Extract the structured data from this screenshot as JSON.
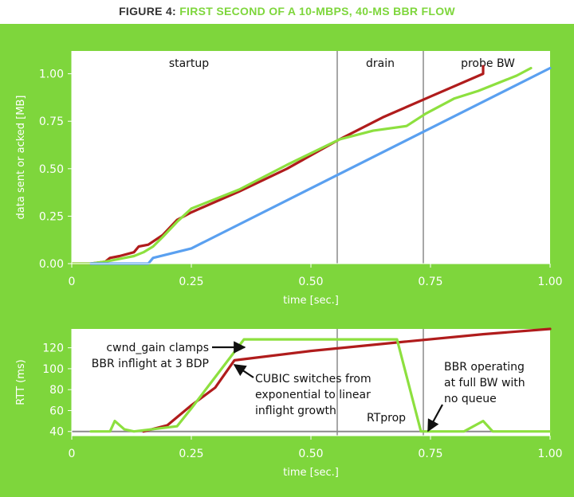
{
  "figure": {
    "number_label": "FIGURE 4:",
    "title": "FIRST SECOND OF A 10-MBPS, 40-MS BBR FLOW"
  },
  "colors": {
    "background_panel": "#7ed63c",
    "plot_bg": "#ffffff",
    "red_series": "#b01c1c",
    "green_series": "#8de03f",
    "blue_series": "#5aa0f0",
    "phase_lines": "#8a8a8a"
  },
  "chart_data": [
    {
      "type": "line",
      "xlabel": "time [sec.]",
      "ylabel": "data sent or acked [MB]",
      "xlim": [
        0,
        1.0
      ],
      "ylim": [
        0,
        1.12
      ],
      "x_ticks": [
        "0",
        "0.25",
        "0.50",
        "0.75",
        "1.00"
      ],
      "x_tick_values": [
        0,
        0.25,
        0.5,
        0.75,
        1.0
      ],
      "y_ticks": [
        "0.00",
        "0.25",
        "0.50",
        "0.75",
        "1.00"
      ],
      "y_tick_values": [
        0,
        0.25,
        0.5,
        0.75,
        1.0
      ],
      "grid": false,
      "phases": [
        {
          "label": "startup",
          "x_start": 0.0,
          "x_end": 0.555
        },
        {
          "label": "drain",
          "x_start": 0.555,
          "x_end": 0.735
        },
        {
          "label": "probe BW",
          "x_start": 0.735,
          "x_end": 1.0
        }
      ],
      "series": [
        {
          "color": "red",
          "points": [
            [
              0.0,
              0.0
            ],
            [
              0.04,
              0.0
            ],
            [
              0.07,
              0.01
            ],
            [
              0.08,
              0.03
            ],
            [
              0.1,
              0.04
            ],
            [
              0.13,
              0.06
            ],
            [
              0.14,
              0.09
            ],
            [
              0.16,
              0.1
            ],
            [
              0.19,
              0.15
            ],
            [
              0.22,
              0.23
            ],
            [
              0.25,
              0.27
            ],
            [
              0.35,
              0.38
            ],
            [
              0.45,
              0.5
            ],
            [
              0.56,
              0.655
            ],
            [
              0.65,
              0.77
            ],
            [
              0.75,
              0.88
            ],
            [
              0.86,
              1.0
            ],
            [
              0.86,
              1.04
            ]
          ]
        },
        {
          "color": "green",
          "points": [
            [
              0.0,
              0.0
            ],
            [
              0.04,
              0.0
            ],
            [
              0.07,
              0.01
            ],
            [
              0.09,
              0.02
            ],
            [
              0.13,
              0.04
            ],
            [
              0.15,
              0.06
            ],
            [
              0.17,
              0.09
            ],
            [
              0.19,
              0.14
            ],
            [
              0.22,
              0.22
            ],
            [
              0.25,
              0.29
            ],
            [
              0.35,
              0.39
            ],
            [
              0.45,
              0.52
            ],
            [
              0.56,
              0.655
            ],
            [
              0.63,
              0.7
            ],
            [
              0.7,
              0.725
            ],
            [
              0.74,
              0.79
            ],
            [
              0.8,
              0.87
            ],
            [
              0.85,
              0.91
            ],
            [
              0.93,
              0.99
            ],
            [
              0.96,
              1.03
            ]
          ]
        },
        {
          "color": "blue",
          "points": [
            [
              0.04,
              0.0
            ],
            [
              0.16,
              0.0
            ],
            [
              0.17,
              0.03
            ],
            [
              0.25,
              0.08
            ],
            [
              1.0,
              1.03
            ]
          ]
        }
      ]
    },
    {
      "type": "line",
      "xlabel": "time [sec.]",
      "ylabel": "RTT (ms)",
      "xlim": [
        0,
        1.0
      ],
      "ylim": [
        36,
        138
      ],
      "x_ticks": [
        "0",
        "0.25",
        "0.50",
        "0.75",
        "1.00"
      ],
      "x_tick_values": [
        0,
        0.25,
        0.5,
        0.75,
        1.0
      ],
      "y_ticks": [
        "40",
        "60",
        "80",
        "100",
        "120"
      ],
      "y_tick_values": [
        40,
        60,
        80,
        100,
        120
      ],
      "grid": false,
      "phase_lines_x": [
        0.555,
        0.735
      ],
      "baseline_y": 40,
      "series": [
        {
          "color": "red",
          "points": [
            [
              0.15,
              40
            ],
            [
              0.2,
              46
            ],
            [
              0.25,
              65
            ],
            [
              0.3,
              82
            ],
            [
              0.34,
              108
            ],
            [
              0.5,
              117
            ],
            [
              0.7,
              126
            ],
            [
              0.86,
              133
            ],
            [
              1.0,
              138
            ]
          ]
        },
        {
          "color": "green",
          "points": [
            [
              0.04,
              40
            ],
            [
              0.08,
              40
            ],
            [
              0.09,
              50
            ],
            [
              0.11,
              42
            ],
            [
              0.13,
              40
            ],
            [
              0.22,
              45
            ],
            [
              0.25,
              62
            ],
            [
              0.3,
              92
            ],
            [
              0.36,
              128
            ],
            [
              0.68,
              128
            ],
            [
              0.73,
              40
            ],
            [
              0.82,
              40
            ],
            [
              0.86,
              50
            ],
            [
              0.88,
              40
            ],
            [
              1.0,
              40
            ]
          ]
        }
      ],
      "annotations": [
        {
          "id": "cwnd",
          "lines": [
            "cwnd_gain clamps",
            "BBR inflight at 3 BDP"
          ]
        },
        {
          "id": "cubic",
          "lines": [
            "CUBIC switches from",
            "exponential to linear",
            "inflight growth"
          ]
        },
        {
          "id": "bbr",
          "lines": [
            "BBR operating",
            "at full BW with",
            "no queue"
          ]
        },
        {
          "id": "rtprop",
          "lines": [
            "RTprop"
          ]
        }
      ]
    }
  ]
}
